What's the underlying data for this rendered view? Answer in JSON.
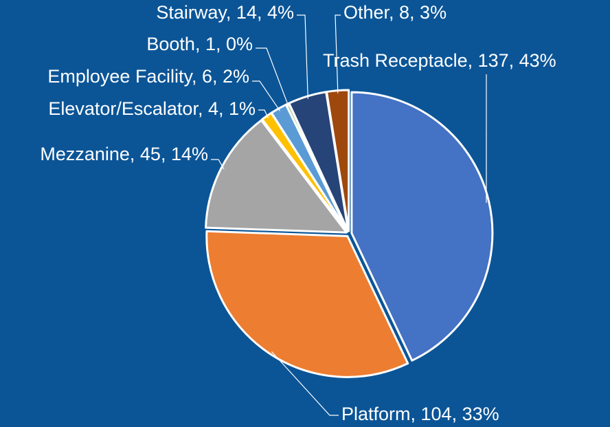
{
  "chart_data": {
    "type": "pie",
    "values": [
      137,
      104,
      45,
      4,
      6,
      1,
      14,
      8
    ],
    "value_labels": [
      "Trash Receptacle, 137, 43%",
      "Platform, 104, 33%",
      "Mezzanine, 45, 14%",
      "Elevator/Escalator, 4, 1%",
      "Employee Facility, 6, 2%",
      "Booth, 1, 0%",
      "Stairway, 14, 4%",
      "Other, 8, 3%"
    ],
    "colors": [
      "#4472c4",
      "#ed7d31",
      "#a5a5a5",
      "#ffc000",
      "#5b9bd5",
      "#70ad47",
      "#264478",
      "#9e480e"
    ]
  }
}
